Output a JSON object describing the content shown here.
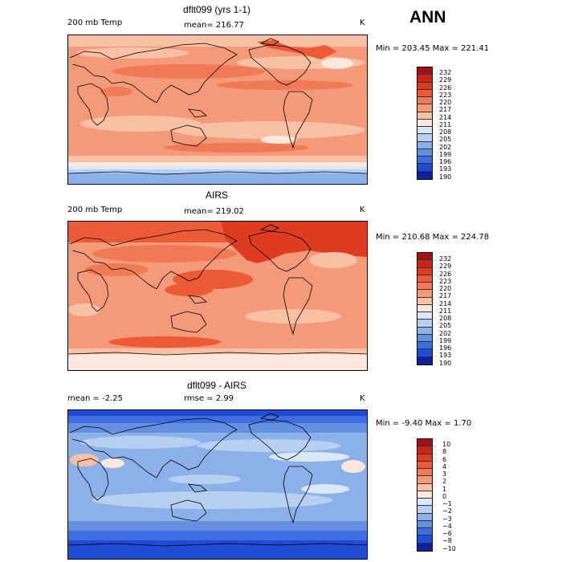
{
  "season": "ANN",
  "panels": [
    {
      "title": "dflt099 (yrs 1-1)",
      "left_label": "200 mb Temp",
      "mid_label": "mean= 216.77",
      "unit": "K",
      "minmax": "Min = 203.45 Max = 221.41",
      "levels": [
        "232",
        "229",
        "226",
        "223",
        "220",
        "217",
        "214",
        "211",
        "208",
        "205",
        "202",
        "199",
        "196",
        "193",
        "190"
      ],
      "colors": [
        "#a50f15",
        "#c8251b",
        "#de3c21",
        "#ec5a36",
        "#f07a55",
        "#f49a78",
        "#f8c0a4",
        "#fde8dd",
        "#dbe8f7",
        "#b7cff1",
        "#8cb1ea",
        "#6590e2",
        "#3e6ee0",
        "#1f4bd6",
        "#0b1fa8"
      ]
    },
    {
      "title": "AIRS",
      "left_label": "200 mb Temp",
      "mid_label": "mean= 219.02",
      "unit": "K",
      "minmax": "Min = 210.68 Max = 224.78",
      "levels": [
        "232",
        "229",
        "226",
        "223",
        "220",
        "217",
        "214",
        "211",
        "208",
        "205",
        "202",
        "199",
        "196",
        "193",
        "190"
      ],
      "colors": [
        "#a50f15",
        "#c8251b",
        "#de3c21",
        "#ec5a36",
        "#f07a55",
        "#f49a78",
        "#f8c0a4",
        "#fde8dd",
        "#dbe8f7",
        "#b7cff1",
        "#8cb1ea",
        "#6590e2",
        "#3e6ee0",
        "#1f4bd6",
        "#0b1fa8"
      ]
    },
    {
      "title": "dflt099 - AIRS",
      "left_label": "mean =  -2.25",
      "mid_label": "rmse =   2.99",
      "unit": "K",
      "minmax": "Min =  -9.40 Max =   1.70",
      "levels": [
        "10",
        "8",
        "6",
        "4",
        "3",
        "2",
        "1",
        "0",
        "−1",
        "−2",
        "−3",
        "−4",
        "−6",
        "−8",
        "−10"
      ],
      "colors": [
        "#a50f15",
        "#c8251b",
        "#de3c21",
        "#ec5a36",
        "#f07a55",
        "#f49a78",
        "#f8c0a4",
        "#fde8dd",
        "#dbe8f7",
        "#b7cff1",
        "#8cb1ea",
        "#6590e2",
        "#3e6ee0",
        "#1f4bd6",
        "#0b1fa8"
      ]
    }
  ]
}
